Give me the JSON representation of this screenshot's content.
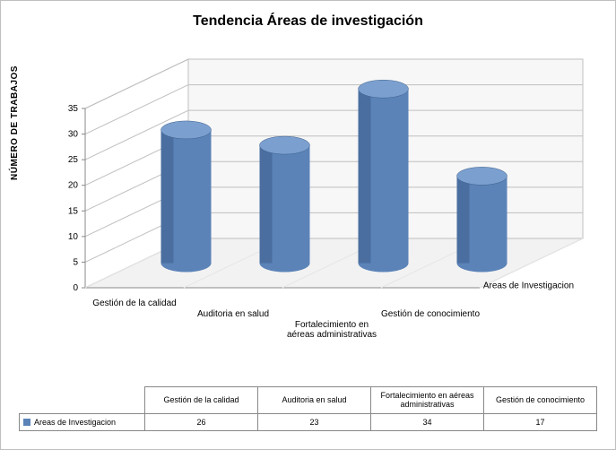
{
  "chart": {
    "type": "3d-cylinder-bar",
    "title": "Tendencia Áreas de investigación",
    "ylabel": "NÚMERO DE TRABAJOS",
    "zlabel": "Areas de Investigacion",
    "categories": [
      "Gestión de la calidad",
      "Auditoria en salud",
      "Fortalecimiento en aéreas administrativas",
      "Gestión de conocimiento"
    ],
    "values": [
      26,
      23,
      34,
      17
    ],
    "ylim": [
      0,
      35
    ],
    "ytick_step": 5,
    "colors": {
      "bar_front": "#5b83b8",
      "bar_side": "#3c5d8a",
      "bar_top": "#7ba0cf",
      "floor_light": "#f2f2f2",
      "floor_dark": "#e6e6e6",
      "wall_light": "#ffffff",
      "wall_dark": "#f7f7f7",
      "grid": "#bfbfbf",
      "axis": "#888888",
      "text": "#000000",
      "background": "#ffffff",
      "border": "#bfbfbf"
    },
    "title_fontsize": 16,
    "label_fontsize": 10
  },
  "table": {
    "row_label": "Areas de Investigacion",
    "columns": [
      "Gestión de la calidad",
      "Auditoria en salud",
      "Fortalecimiento en aéreas administrativas",
      "Gestión de conocimiento"
    ],
    "rows": [
      [
        26,
        23,
        34,
        17
      ]
    ]
  }
}
